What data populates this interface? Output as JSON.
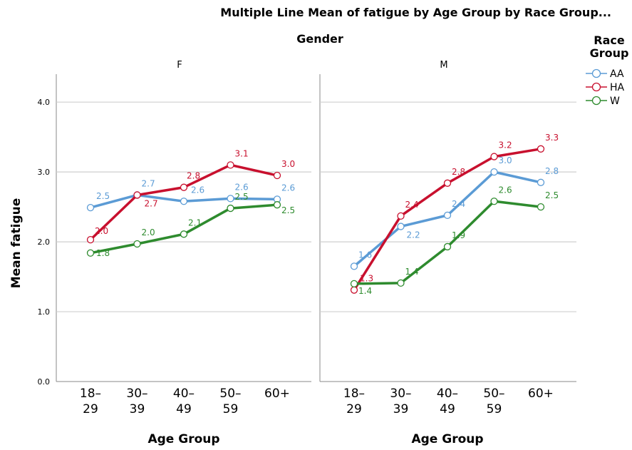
{
  "title": "Multiple Line Mean of fatigue by Age Group by Race Group...",
  "panel_group_label": "Gender",
  "legend": {
    "title_line1": "Race",
    "title_line2": "Group"
  },
  "chart_data": {
    "type": "line",
    "title": "Multiple Line Mean of fatigue by Age Group by Race Group...",
    "xlabel": "Age Group",
    "ylabel": "Mean fatigue",
    "ylim": [
      0,
      4.4
    ],
    "yticks": [
      "0.0",
      "1.0",
      "2.0",
      "3.0",
      "4.0"
    ],
    "grid": true,
    "legend_position": "top-right",
    "categories": [
      [
        "18–",
        "29"
      ],
      [
        "30–",
        "39"
      ],
      [
        "40–",
        "49"
      ],
      [
        "50–",
        "59"
      ],
      [
        "60+",
        ""
      ]
    ],
    "panels": [
      {
        "label": "F",
        "series": [
          {
            "name": "AA",
            "color": "#5b9bd5",
            "values": [
              2.49,
              2.67,
              2.58,
              2.62,
              2.61
            ],
            "labels": [
              "2.5",
              "2.7",
              "2.6",
              "2.6",
              "2.6"
            ]
          },
          {
            "name": "HA",
            "color": "#c8102e",
            "values": [
              2.03,
              2.67,
              2.78,
              3.1,
              2.95
            ],
            "labels": [
              "2.0",
              "2.7",
              "2.8",
              "3.1",
              "3.0"
            ]
          },
          {
            "name": "W",
            "color": "#2e8b2e",
            "values": [
              1.84,
              1.97,
              2.11,
              2.48,
              2.53
            ],
            "labels": [
              "1.8",
              "2.0",
              "2.1",
              "2.5",
              "2.5"
            ]
          }
        ]
      },
      {
        "label": "M",
        "series": [
          {
            "name": "AA",
            "color": "#5b9bd5",
            "values": [
              1.65,
              2.22,
              2.38,
              3.0,
              2.85
            ],
            "labels": [
              "1.6",
              "2.2",
              "2.4",
              "3.0",
              "2.8"
            ]
          },
          {
            "name": "HA",
            "color": "#c8102e",
            "values": [
              1.31,
              2.37,
              2.84,
              3.22,
              3.33
            ],
            "labels": [
              "1.3",
              "2.4",
              "2.8",
              "3.2",
              "3.3"
            ]
          },
          {
            "name": "W",
            "color": "#2e8b2e",
            "values": [
              1.4,
              1.41,
              1.93,
              2.58,
              2.5
            ],
            "labels": [
              "1.4",
              "1.4",
              "1.9",
              "2.6",
              "2.5"
            ]
          }
        ]
      }
    ]
  }
}
